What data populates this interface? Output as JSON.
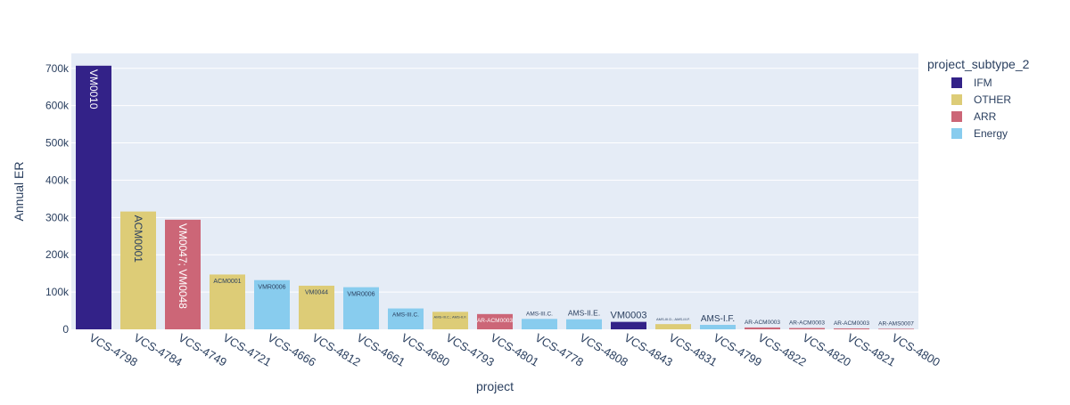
{
  "chart_data": {
    "type": "bar",
    "xlabel": "project",
    "ylabel": "Annual ER",
    "ylim": [
      0,
      740000
    ],
    "y_ticks": [
      {
        "value": 0,
        "label": "0"
      },
      {
        "value": 100000,
        "label": "100k"
      },
      {
        "value": 200000,
        "label": "200k"
      },
      {
        "value": 300000,
        "label": "300k"
      },
      {
        "value": 400000,
        "label": "400k"
      },
      {
        "value": 500000,
        "label": "500k"
      },
      {
        "value": 600000,
        "label": "600k"
      },
      {
        "value": 700000,
        "label": "700k"
      }
    ],
    "grid": true,
    "legend": {
      "title": "project_subtype_2",
      "placement": "top-right",
      "entries": [
        {
          "name": "IFM",
          "color": "#332288"
        },
        {
          "name": "OTHER",
          "color": "#DDCC77"
        },
        {
          "name": "ARR",
          "color": "#CC6677"
        },
        {
          "name": "Energy",
          "color": "#88CCEE"
        }
      ]
    },
    "bars": [
      {
        "category": "VCS-4798",
        "value": 707000,
        "group": "IFM",
        "label": "VM0010",
        "label_pos": "inside"
      },
      {
        "category": "VCS-4784",
        "value": 316000,
        "group": "OTHER",
        "label": "ACM0001",
        "label_pos": "inside"
      },
      {
        "category": "VCS-4749",
        "value": 294000,
        "group": "ARR",
        "label": "VM0047; VM0048",
        "label_pos": "inside"
      },
      {
        "category": "VCS-4721",
        "value": 147000,
        "group": "OTHER",
        "label": "ACM0001",
        "label_pos": "inside"
      },
      {
        "category": "VCS-4666",
        "value": 132000,
        "group": "Energy",
        "label": "VMR0006",
        "label_pos": "inside"
      },
      {
        "category": "VCS-4812",
        "value": 117000,
        "group": "OTHER",
        "label": "VM0044",
        "label_pos": "inside"
      },
      {
        "category": "VCS-4661",
        "value": 113000,
        "group": "Energy",
        "label": "VMR0006",
        "label_pos": "inside"
      },
      {
        "category": "VCS-4680",
        "value": 56000,
        "group": "Energy",
        "label": "AMS-III.C.",
        "label_pos": "inside"
      },
      {
        "category": "VCS-4793",
        "value": 47000,
        "group": "OTHER",
        "label": "AMS-III.C.; AMS-II.F.",
        "label_pos": "inside"
      },
      {
        "category": "VCS-4801",
        "value": 41000,
        "group": "ARR",
        "label": "AR-ACM0003",
        "label_pos": "inside"
      },
      {
        "category": "VCS-4778",
        "value": 28000,
        "group": "Energy",
        "label": "AMS-III.C.",
        "label_pos": "outside"
      },
      {
        "category": "VCS-4808",
        "value": 27000,
        "group": "Energy",
        "label": "AMS-II.E.",
        "label_pos": "outside"
      },
      {
        "category": "VCS-4843",
        "value": 20000,
        "group": "IFM",
        "label": "VM0003",
        "label_pos": "outside"
      },
      {
        "category": "VCS-4831",
        "value": 14000,
        "group": "OTHER",
        "label": "AMS-III.D.; AMS-III.F.",
        "label_pos": "outside"
      },
      {
        "category": "VCS-4799",
        "value": 12000,
        "group": "Energy",
        "label": "AMS-I.F.",
        "label_pos": "outside"
      },
      {
        "category": "VCS-4822",
        "value": 5000,
        "group": "ARR",
        "label": "AR-ACM0003",
        "label_pos": "outside"
      },
      {
        "category": "VCS-4820",
        "value": 3500,
        "group": "ARR",
        "label": "AR-ACM0003",
        "label_pos": "outside"
      },
      {
        "category": "VCS-4821",
        "value": 2500,
        "group": "ARR",
        "label": "AR-ACM0003",
        "label_pos": "outside"
      },
      {
        "category": "VCS-4800",
        "value": 1500,
        "group": "ARR",
        "label": "AR-AMS0007",
        "label_pos": "outside"
      }
    ]
  }
}
